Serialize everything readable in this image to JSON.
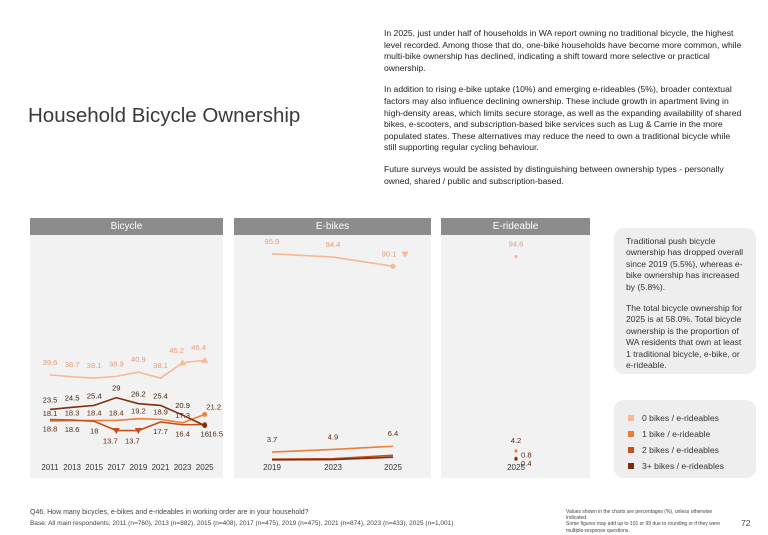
{
  "page": {
    "title": "Household Bicycle Ownership",
    "page_number": "72"
  },
  "intro": [
    "In 2025, just under half of households in WA report owning no traditional bicycle, the highest level recorded. Among those that do, one-bike households have become more common, while multi-bike ownership has declined, indicating a shift toward more selective or practical ownership.",
    "In addition to rising e-bike uptake (10%) and emerging e-rideables (5%), broader contextual factors may also influence declining ownership. These include growth in apartment living in high-density areas, which limits secure storage, as well as the expanding availability of shared bikes, e-scooters, and subscription-based bike services such as Lug & Carrie in the more populated states. These alternatives may reduce the need to own a traditional bicycle while still supporting regular cycling behaviour.",
    "Future surveys would be assisted by distinguishing between ownership types - personally owned, shared / public and subscription-based."
  ],
  "side_note": [
    "Traditional push bicycle ownership has dropped overall since 2019 (5.5%), whereas e-bike ownership has increased by (5.8%).",
    "The total bicycle ownership for 2025 is at 58.0%. Total bicycle ownership is the proportion of WA residents that own at least 1 traditional bicycle, e-bike, or e-rideable."
  ],
  "legend": [
    {
      "label": "0 bikes / e-rideables",
      "color": "#f6b898"
    },
    {
      "label": "1 bike / e-rideable",
      "color": "#ee7e38"
    },
    {
      "label": "2 bikes / e-rideables",
      "color": "#c4501e"
    },
    {
      "label": "3+ bikes / e-rideables",
      "color": "#7c2e0e"
    }
  ],
  "footer": {
    "question": "Q46. How many bicycles, e-bikes and e-rideables in working order are in your household?",
    "base": "Base: All main respondents; 2011 (n=760), 2013 (n=882), 2015 (n=408), 2017 (n=475), 2019 (n=475), 2021 (n=874), 2023 (n=433), 2025 (n=1,001)",
    "notes": [
      "Values shown in the charts are percentages (%), unless otherwise indicated.",
      "Some figures may add up to 101 or 99 due to rounding or if they were multiple-response questions."
    ]
  },
  "chart_data": [
    {
      "type": "line",
      "title": "Bicycle",
      "x": [
        "2011",
        "2013",
        "2015",
        "2017",
        "2019",
        "2021",
        "2023",
        "2025"
      ],
      "ylim": [
        0,
        100
      ],
      "series": [
        {
          "name": "0 bikes / e-rideables",
          "color": "#f6b898",
          "values": [
            39.6,
            38.7,
            38.1,
            38.9,
            40.9,
            38.1,
            45.2,
            46.4
          ],
          "markers": [
            false,
            false,
            false,
            false,
            false,
            false,
            "up",
            "up"
          ],
          "labels": [
            "39.6",
            "38.7",
            "38.1",
            "38.9",
            "40.9",
            "38.1",
            "45.2",
            "46.4"
          ]
        },
        {
          "name": "1 bike / e-rideable",
          "color": "#ee7e38",
          "values": [
            18.1,
            18.3,
            18.4,
            18.4,
            19.2,
            18.9,
            17.3,
            21.2
          ],
          "markers": [
            false,
            false,
            false,
            false,
            false,
            false,
            false,
            "dot"
          ],
          "labels": [
            "18.1",
            "18.3",
            "18.4",
            "18.4",
            "19.2",
            "18.9",
            "17.3",
            "21.2"
          ]
        },
        {
          "name": "2 bikes / e-rideables",
          "color": "#c4501e",
          "values": [
            18.8,
            18.6,
            18,
            13.7,
            13.7,
            17.7,
            16.4,
            16.5
          ],
          "markers": [
            false,
            false,
            false,
            "down",
            "down",
            false,
            false,
            "dot"
          ],
          "labels": [
            "18.8",
            "18.6",
            "18",
            "13.7",
            "13.7",
            "17.7",
            "16.4",
            "16.5"
          ]
        },
        {
          "name": "3+ bikes / e-rideables",
          "color": "#7c2e0e",
          "values": [
            23.5,
            24.5,
            25.4,
            29,
            26.2,
            25.4,
            20.9,
            16
          ],
          "markers": [
            false,
            false,
            false,
            false,
            false,
            false,
            false,
            "dot"
          ],
          "labels": [
            "23.5",
            "24.5",
            "25.4",
            "29",
            "26.2",
            "25.4",
            "20.9",
            "16"
          ]
        }
      ]
    },
    {
      "type": "line",
      "title": "E-bikes",
      "x": [
        "2019",
        "2023",
        "2025"
      ],
      "ylim": [
        0,
        100
      ],
      "series": [
        {
          "name": "0 bikes / e-rideables",
          "color": "#f6b898",
          "values": [
            95.9,
            94.4,
            90.1
          ],
          "markers": [
            false,
            false,
            "down"
          ],
          "labels": [
            "95.9",
            "94.4",
            "90.1"
          ]
        },
        {
          "name": "1 bike / e-rideable",
          "color": "#ee7e38",
          "values": [
            3.7,
            4.9,
            6.4
          ],
          "markers": [
            false,
            false,
            false
          ],
          "labels": [
            "3.7",
            "4.9",
            "6.4"
          ]
        },
        {
          "name": "2 bikes / e-rideables",
          "color": "#c4501e",
          "values": [
            0.4,
            0.6,
            2.2
          ],
          "markers": [
            false,
            false,
            false
          ],
          "labels": [
            "",
            "",
            ""
          ]
        },
        {
          "name": "3+ bikes / e-rideables",
          "color": "#7c2e0e",
          "values": [
            0.1,
            0.2,
            1.3
          ],
          "markers": [
            false,
            false,
            false
          ],
          "labels": [
            "",
            "",
            ""
          ]
        }
      ]
    },
    {
      "type": "scatter",
      "title": "E-rideable",
      "x": [
        "2025"
      ],
      "ylim": [
        0,
        100
      ],
      "series": [
        {
          "name": "0 bikes / e-rideables",
          "color": "#f6b898",
          "values": [
            94.6
          ],
          "labels": [
            "94.6"
          ]
        },
        {
          "name": "1 bike / e-rideable",
          "color": "#ee7e38",
          "values": [
            4.2
          ],
          "labels": [
            "4.2"
          ]
        },
        {
          "name": "2 bikes / e-rideables",
          "color": "#c4501e",
          "values": [
            0.8
          ],
          "labels": [
            "0.8"
          ]
        },
        {
          "name": "3+ bikes / e-rideables",
          "color": "#7c2e0e",
          "values": [
            0.4
          ],
          "labels": [
            "0.4"
          ]
        }
      ]
    }
  ]
}
